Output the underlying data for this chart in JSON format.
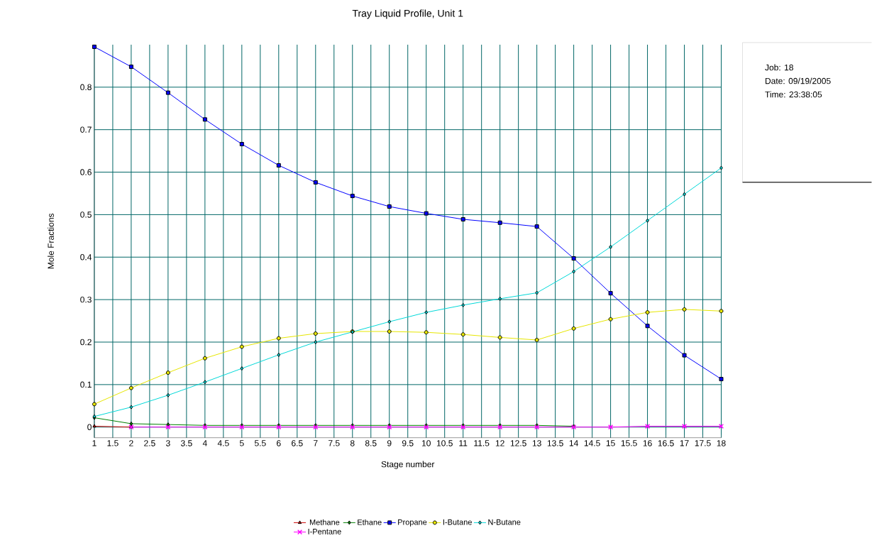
{
  "chart_data": {
    "type": "line",
    "title": "Tray Liquid Profile, Unit 1",
    "xlabel": "Stage number",
    "ylabel": "Mole Fractions",
    "x": [
      1,
      2,
      3,
      4,
      5,
      6,
      7,
      8,
      9,
      10,
      11,
      12,
      13,
      14,
      15,
      16,
      17,
      18
    ],
    "series": [
      {
        "name": "Methane",
        "color": "#cc0000",
        "marker": "triangle",
        "values": [
          0.002,
          0,
          null,
          null,
          null,
          null,
          null,
          null,
          null,
          null,
          null,
          null,
          null,
          null,
          null,
          null,
          null,
          null
        ]
      },
      {
        "name": "Ethane",
        "color": "#008000",
        "marker": "diamond",
        "values": [
          0.022,
          0.008,
          0.006,
          0.004,
          0.004,
          0.004,
          0.004,
          0.004,
          0.004,
          0.004,
          0.004,
          0.004,
          0.004,
          0.002,
          null,
          null,
          null,
          null
        ]
      },
      {
        "name": "Propane",
        "color": "#0000ff",
        "marker": "square",
        "values": [
          0.895,
          0.848,
          0.787,
          0.724,
          0.666,
          0.616,
          0.576,
          0.544,
          0.519,
          0.503,
          0.489,
          0.481,
          0.472,
          0.397,
          0.315,
          0.238,
          0.169,
          0.113
        ]
      },
      {
        "name": "I-Butane",
        "color": "#e6e600",
        "marker": "circle",
        "values": [
          0.054,
          0.092,
          0.128,
          0.162,
          0.189,
          0.209,
          0.22,
          0.225,
          0.225,
          0.223,
          0.218,
          0.211,
          0.205,
          0.232,
          0.254,
          0.27,
          0.277,
          0.273
        ]
      },
      {
        "name": "N-Butane",
        "color": "#00d8d8",
        "marker": "diamond",
        "values": [
          0.025,
          0.047,
          0.075,
          0.106,
          0.138,
          0.17,
          0.2,
          0.224,
          0.248,
          0.27,
          0.287,
          0.302,
          0.316,
          0.366,
          0.424,
          0.486,
          0.548,
          0.61
        ]
      },
      {
        "name": "I-Pentane",
        "color": "#ff00ff",
        "marker": "cross",
        "values": [
          null,
          0,
          0,
          0,
          0,
          0,
          0,
          0,
          0,
          0,
          0,
          0,
          0,
          0,
          0,
          0.002,
          0.002,
          0.002
        ]
      }
    ],
    "xlim": [
      1,
      18
    ],
    "xticks": [
      1,
      1.5,
      2,
      2.5,
      3,
      3.5,
      4,
      4.5,
      5,
      5.5,
      6,
      6.5,
      7,
      7.5,
      8,
      8.5,
      9,
      9.5,
      10,
      10.5,
      11,
      11.5,
      12,
      12.5,
      13,
      13.5,
      14,
      14.5,
      15,
      15.5,
      16,
      16.5,
      17,
      17.5,
      18
    ],
    "ylim": [
      -0.025,
      0.9
    ],
    "yticks": [
      0,
      0.1,
      0.2,
      0.3,
      0.4,
      0.5,
      0.6,
      0.7,
      0.8
    ],
    "grid": true,
    "legend": "bottom",
    "annotations": [
      "Job:  18",
      "Date: 09/19/2005",
      "Time: 23:38:05"
    ]
  }
}
